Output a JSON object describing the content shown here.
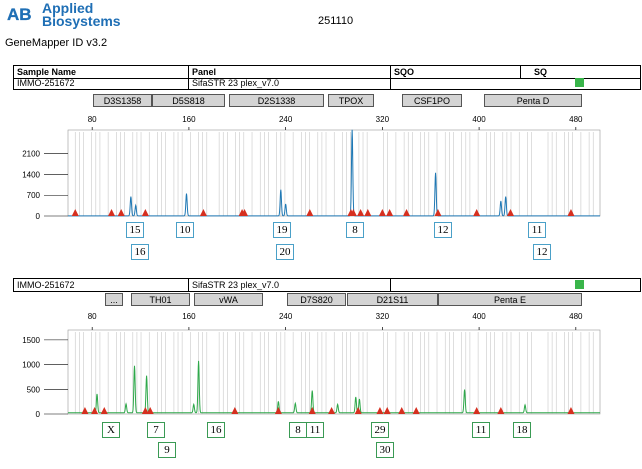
{
  "header": {
    "brand_line1": "Applied",
    "brand_line2": "Biosystems",
    "software": "GeneMapper ID v3.2",
    "run_id": "251110"
  },
  "table_header": {
    "sample_name": "Sample Name",
    "panel": "Panel",
    "sqo": "SQO",
    "sq": "SQ"
  },
  "colors": {
    "blue_dye": "#1f78b4",
    "green_dye": "#2ea84a",
    "sizer": "#d62f1f",
    "status": "#39b54a",
    "marker_fill": "#d4d4d4"
  },
  "panels": [
    {
      "sample": "IMMO-251672",
      "panel_name": "SifaSTR 23 plex_v7.0",
      "dye_color": "#1f78b4",
      "markers": [
        "D3S1358",
        "D5S818",
        "D2S1338",
        "TPOX",
        "CSF1PO",
        "Penta D"
      ],
      "x_ticks": [
        "80",
        "160",
        "240",
        "320",
        "400",
        "480"
      ],
      "y_ticks": [
        "0",
        "700",
        "1400",
        "2100"
      ],
      "alleles_top": [
        "15",
        "10",
        "19",
        "8",
        "12",
        "11"
      ],
      "alleles_bottom": [
        "16",
        "20",
        "12"
      ]
    },
    {
      "sample": "IMMO-251672",
      "panel_name": "SifaSTR 23 plex_v7.0",
      "dye_color": "#2ea84a",
      "markers": [
        "...",
        "TH01",
        "vWA",
        "D7S820",
        "D21S11",
        "Penta E"
      ],
      "x_ticks": [
        "80",
        "160",
        "240",
        "320",
        "400",
        "480"
      ],
      "y_ticks": [
        "0",
        "500",
        "1000",
        "1500"
      ],
      "alleles_top": [
        "X",
        "7",
        "16",
        "8",
        "11",
        "29",
        "11",
        "18"
      ],
      "alleles_bottom": [
        "9",
        "30"
      ]
    }
  ],
  "chart_data": [
    {
      "type": "line",
      "series": [
        {
          "name": "",
          "peaks": [
            {
              "size": 112,
              "height": 650
            },
            {
              "size": 116,
              "height": 350
            },
            {
              "size": 158,
              "height": 750
            },
            {
              "size": 236,
              "height": 880
            },
            {
              "size": 240,
              "height": 400
            },
            {
              "size": 295,
              "height": 2900
            },
            {
              "size": 364,
              "height": 1450
            },
            {
              "size": 418,
              "height": 500
            },
            {
              "size": 422,
              "height": 650
            }
          ]
        }
      ],
      "xlim": [
        60,
        500
      ],
      "ylim": [
        0,
        2900
      ],
      "y_ticks": [
        0,
        700,
        1400,
        2100
      ],
      "size_standard": [
        66,
        96,
        104,
        124,
        172,
        204,
        206,
        260,
        294,
        296,
        302,
        308,
        320,
        326,
        340,
        366,
        398,
        426,
        476
      ]
    },
    {
      "type": "line",
      "series": [
        {
          "name": "",
          "peaks": [
            {
              "size": 84,
              "height": 380
            },
            {
              "size": 108,
              "height": 180
            },
            {
              "size": 115,
              "height": 950
            },
            {
              "size": 125,
              "height": 750
            },
            {
              "size": 164,
              "height": 170
            },
            {
              "size": 168,
              "height": 1050
            },
            {
              "size": 234,
              "height": 230
            },
            {
              "size": 248,
              "height": 190
            },
            {
              "size": 262,
              "height": 450
            },
            {
              "size": 283,
              "height": 170
            },
            {
              "size": 298,
              "height": 320
            },
            {
              "size": 301,
              "height": 280
            },
            {
              "size": 388,
              "height": 470
            },
            {
              "size": 438,
              "height": 160
            }
          ]
        }
      ],
      "xlim": [
        60,
        500
      ],
      "ylim": [
        0,
        1700
      ],
      "y_ticks": [
        0,
        500,
        1000,
        1500
      ],
      "size_standard": [
        74,
        82,
        90,
        124,
        128,
        198,
        234,
        262,
        278,
        300,
        318,
        324,
        336,
        348,
        398,
        418,
        476
      ]
    }
  ]
}
